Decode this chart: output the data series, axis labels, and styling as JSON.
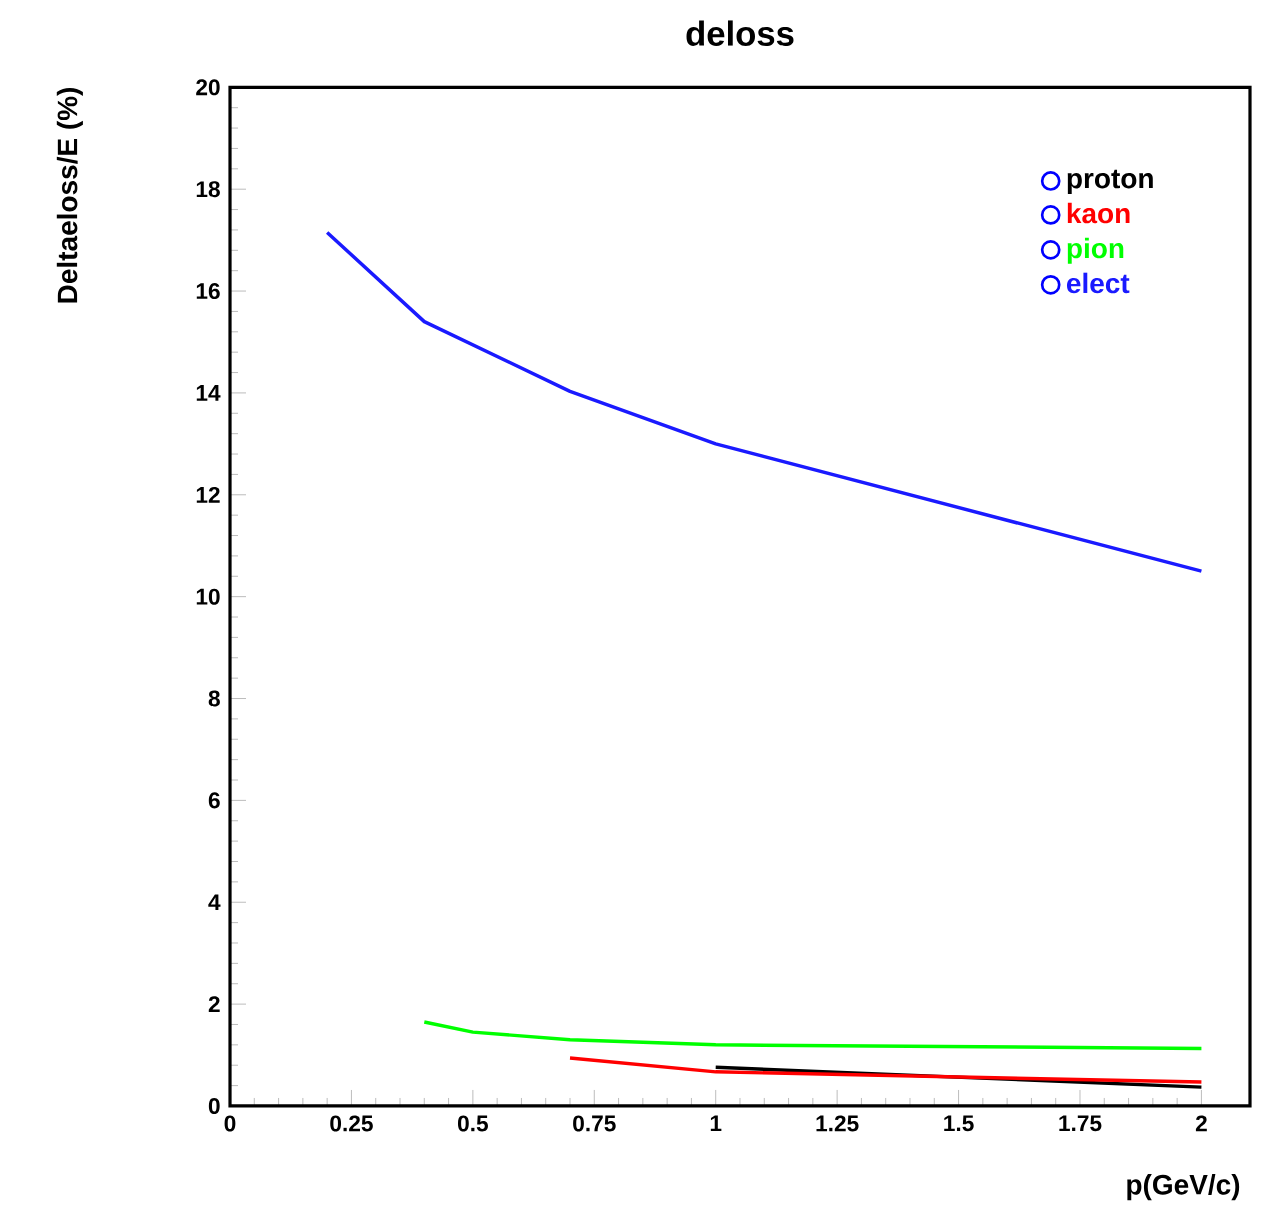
{
  "chart_data": {
    "type": "line",
    "title": "deloss",
    "xlabel": "p(GeV/c)",
    "ylabel": "Deltaeloss/E (%)",
    "xlim": [
      0,
      2.1
    ],
    "ylim": [
      0,
      20
    ],
    "xticks": [
      0,
      0.25,
      0.5,
      0.75,
      1,
      1.25,
      1.5,
      1.75,
      2
    ],
    "yticks": [
      0,
      2,
      4,
      6,
      8,
      10,
      12,
      14,
      16,
      18,
      20
    ],
    "legend": "top right",
    "grid": false,
    "series": [
      {
        "name": "proton",
        "color": "#000000",
        "x": [
          1.0,
          2.0
        ],
        "values": [
          0.76,
          0.37
        ]
      },
      {
        "name": "kaon",
        "color": "#ff0000",
        "x": [
          0.7,
          1.0,
          2.0
        ],
        "values": [
          0.94,
          0.67,
          0.47
        ]
      },
      {
        "name": "pion",
        "color": "#00ff00",
        "x": [
          0.4,
          0.5,
          0.7,
          1.0,
          2.0
        ],
        "values": [
          1.65,
          1.45,
          1.3,
          1.2,
          1.13
        ]
      },
      {
        "name": "elect",
        "color": "#1a1aff",
        "x": [
          0.2,
          0.4,
          0.7,
          1.0,
          2.0
        ],
        "values": [
          17.15,
          15.4,
          14.03,
          13.0,
          10.5
        ]
      }
    ]
  }
}
